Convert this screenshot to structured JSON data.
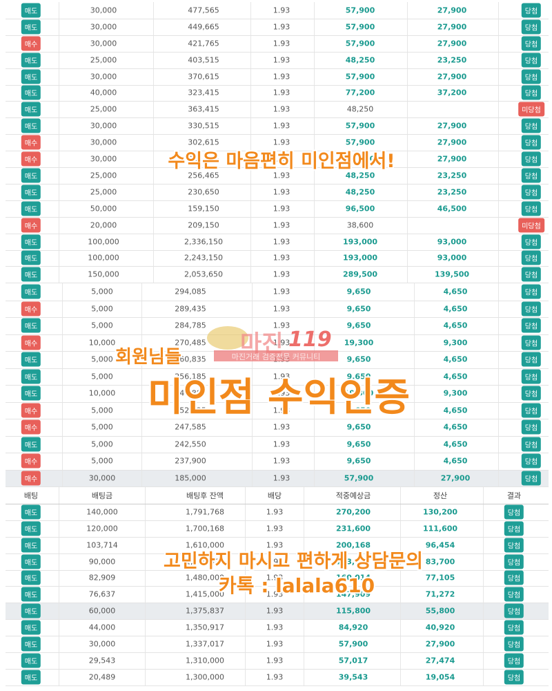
{
  "table1": {
    "rows": [
      [
        "매도",
        "30,000",
        "477,565",
        "1.93",
        "57,900",
        "27,900",
        "당첨"
      ],
      [
        "매도",
        "30,000",
        "449,665",
        "1.93",
        "57,900",
        "27,900",
        "당첨"
      ],
      [
        "매수",
        "30,000",
        "421,765",
        "1.93",
        "57,900",
        "27,900",
        "당첨"
      ],
      [
        "매도",
        "25,000",
        "403,515",
        "1.93",
        "48,250",
        "23,250",
        "당첨"
      ],
      [
        "매도",
        "30,000",
        "370,615",
        "1.93",
        "57,900",
        "27,900",
        "당첨"
      ],
      [
        "매도",
        "40,000",
        "323,415",
        "1.93",
        "77,200",
        "37,200",
        "당첨"
      ],
      [
        "매도",
        "25,000",
        "363,415",
        "1.93",
        "48,250",
        null,
        "미당첨"
      ],
      [
        "매도",
        "30,000",
        "330,515",
        "1.93",
        "57,900",
        "27,900",
        "당첨"
      ],
      [
        "매수",
        "30,000",
        "302,615",
        "1.93",
        "57,900",
        "27,900",
        "당첨"
      ],
      [
        "매수",
        "30,000",
        "286,465",
        "1.93",
        "57,900",
        "27,900",
        "당첨"
      ],
      [
        "매도",
        "25,000",
        "256,465",
        "1.93",
        "48,250",
        "23,250",
        "당첨"
      ],
      [
        "매도",
        "25,000",
        "230,650",
        "1.93",
        "48,250",
        "23,250",
        "당첨"
      ],
      [
        "매도",
        "50,000",
        "159,150",
        "1.93",
        "96,500",
        "46,500",
        "당첨"
      ],
      [
        "매수",
        "20,000",
        "209,150",
        "1.93",
        "38,600",
        null,
        "미당첨"
      ],
      [
        "매도",
        "100,000",
        "2,336,150",
        "1.93",
        "193,000",
        "93,000",
        "당첨"
      ],
      [
        "매도",
        "100,000",
        "2,243,150",
        "1.93",
        "193,000",
        "93,000",
        "당첨"
      ],
      [
        "매도",
        "150,000",
        "2,053,650",
        "1.93",
        "289,500",
        "139,500",
        "당첨"
      ]
    ]
  },
  "table2": {
    "highlight_row": 11,
    "rows": [
      [
        "매도",
        "5,000",
        "294,085",
        "1.93",
        "9,650",
        "4,650",
        "당첨"
      ],
      [
        "매수",
        "5,000",
        "289,435",
        "1.93",
        "9,650",
        "4,650",
        "당첨"
      ],
      [
        "매도",
        "5,000",
        "284,785",
        "1.93",
        "9,650",
        "4,650",
        "당첨"
      ],
      [
        "매수",
        "10,000",
        "270,485",
        "1.93",
        "19,300",
        "9,300",
        "당첨"
      ],
      [
        "매도",
        "5,000",
        "260,835",
        "1.93",
        "9,650",
        "4,650",
        "당첨"
      ],
      [
        "매도",
        "5,000",
        "256,185",
        "1.93",
        "9,650",
        "4,650",
        "당첨"
      ],
      [
        "매도",
        "10,000",
        "246,885",
        "1.93",
        "19,300",
        "9,300",
        "당첨"
      ],
      [
        "매수",
        "5,000",
        "252,235",
        "1.93",
        "9,650",
        "4,650",
        "당첨"
      ],
      [
        "매수",
        "5,000",
        "247,585",
        "1.93",
        "9,650",
        "4,650",
        "당첨"
      ],
      [
        "매도",
        "5,000",
        "242,550",
        "1.93",
        "9,650",
        "4,650",
        "당첨"
      ],
      [
        "매수",
        "5,000",
        "237,900",
        "1.93",
        "9,650",
        "4,650",
        "당첨"
      ],
      [
        "매수",
        "30,000",
        "185,000",
        "1.93",
        "57,900",
        "27,900",
        "당첨"
      ]
    ]
  },
  "table3": {
    "highlight_row": 6,
    "header": [
      "배팅",
      "배팅금",
      "배팅후 잔액",
      "배당",
      "적중예상금",
      "정산",
      "결과"
    ],
    "rows": [
      [
        "매도",
        "140,000",
        "1,791,768",
        "1.93",
        "270,200",
        "130,200",
        "당첨"
      ],
      [
        "매도",
        "120,000",
        "1,700,168",
        "1.93",
        "231,600",
        "111,600",
        "당첨"
      ],
      [
        "매도",
        "103,714",
        "1,610,000",
        "1.93",
        "200,168",
        "96,454",
        "당첨"
      ],
      [
        "매도",
        "90,000",
        "1,530,000",
        "1.93",
        "173,700",
        "83,700",
        "당첨"
      ],
      [
        "매도",
        "82,909",
        "1,480,000",
        "1.93",
        "160,014",
        "77,105",
        "당첨"
      ],
      [
        "매도",
        "76,637",
        "1,415,000",
        "1.93",
        "147,909",
        "71,272",
        "당첨"
      ],
      [
        "매도",
        "60,000",
        "1,375,837",
        "1.93",
        "115,800",
        "55,800",
        "당첨"
      ],
      [
        "매도",
        "44,000",
        "1,350,917",
        "1.93",
        "84,920",
        "40,920",
        "당첨"
      ],
      [
        "매도",
        "30,000",
        "1,337,017",
        "1.93",
        "57,900",
        "27,900",
        "당첨"
      ],
      [
        "매도",
        "29,543",
        "1,310,000",
        "1.93",
        "57,017",
        "27,474",
        "당첨"
      ],
      [
        "매도",
        "20,489",
        "1,300,000",
        "1.93",
        "39,543",
        "19,054",
        "당첨"
      ]
    ]
  },
  "badge_colors": {
    "매도": "#1f9e96",
    "매수": "#e8605a",
    "당첨": "#1f9e96",
    "미당첨": "#e8605a"
  },
  "watermark": {
    "logo": "마진",
    "logo_number": "119",
    "tagline": "마진거래 검증전문 커뮤니티"
  },
  "overlay": {
    "line1": "수익은 마음편히 미인점에서!",
    "line2": "회원님들",
    "line3": "미인점 수익인증",
    "line4": "고민하지 마시고 편하게 상담문의",
    "line5": "카톡 : lalala610"
  }
}
